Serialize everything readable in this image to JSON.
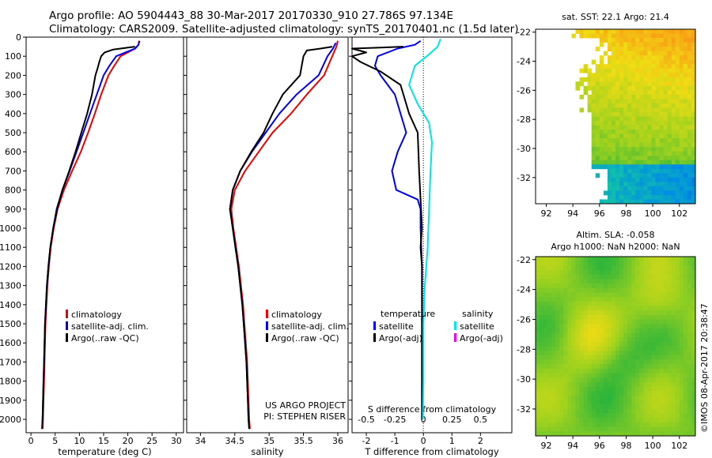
{
  "header": {
    "line1": "Argo profile: AO 5904443_88 30-Mar-2017 20170330_910 27.786S 97.134E",
    "line2": "Climatology: CARS2009. Satellite-adjusted climatology: synTS_20170401.nc (1.5d later)"
  },
  "credit": "©IMOS 08-Apr-2017 20:38:47",
  "colors": {
    "clim": "#ee0000",
    "sat": "#0000ee",
    "argo": "#000000",
    "sat_s": "#00e5e5",
    "argo_s": "#ee00ee",
    "zero": "#000000"
  },
  "chart_data": [
    {
      "id": "temperature",
      "type": "line",
      "xlabel": "temperature (deg C)",
      "xlim": [
        -1,
        31.5
      ],
      "xticks": [
        "0",
        "5",
        "10",
        "15",
        "20",
        "25",
        "30"
      ],
      "ylim": [
        2070,
        0
      ],
      "yticks": [
        "0",
        "100",
        "200",
        "300",
        "400",
        "500",
        "600",
        "700",
        "800",
        "900",
        "1000",
        "1100",
        "1200",
        "1300",
        "1400",
        "1500",
        "1600",
        "1700",
        "1800",
        "1900",
        "2000"
      ],
      "legend": {
        "position": "lower-middle",
        "items": [
          {
            "label": "climatology",
            "color": "#ee0000"
          },
          {
            "label": "satellite-adj. clim.",
            "color": "#0000ee"
          },
          {
            "label": "Argo(..raw -QC)",
            "color": "#000000"
          }
        ]
      },
      "series": [
        {
          "name": "climatology",
          "color": "#ee0000",
          "points": [
            [
              22.3,
              20
            ],
            [
              22.2,
              40
            ],
            [
              21.5,
              60
            ],
            [
              20,
              80
            ],
            [
              18.5,
              100
            ],
            [
              17.2,
              150
            ],
            [
              16,
              200
            ],
            [
              14.5,
              300
            ],
            [
              13.2,
              400
            ],
            [
              11.8,
              500
            ],
            [
              10.3,
              600
            ],
            [
              8.5,
              700
            ],
            [
              6.8,
              800
            ],
            [
              5.5,
              900
            ],
            [
              4.7,
              1000
            ],
            [
              4.1,
              1100
            ],
            [
              3.7,
              1200
            ],
            [
              3.4,
              1300
            ],
            [
              3.2,
              1400
            ],
            [
              3.0,
              1500
            ],
            [
              2.9,
              1600
            ],
            [
              2.8,
              1700
            ],
            [
              2.7,
              1800
            ],
            [
              2.6,
              1900
            ],
            [
              2.5,
              2000
            ],
            [
              2.4,
              2050
            ]
          ]
        },
        {
          "name": "satellite-adj. clim.",
          "color": "#0000ee",
          "points": [
            [
              22.4,
              20
            ],
            [
              22.2,
              40
            ],
            [
              21.5,
              60
            ],
            [
              19.5,
              80
            ],
            [
              17.6,
              100
            ],
            [
              16.2,
              150
            ],
            [
              15,
              200
            ],
            [
              13.6,
              300
            ],
            [
              12.2,
              400
            ],
            [
              10.8,
              500
            ],
            [
              9.4,
              600
            ],
            [
              8,
              700
            ],
            [
              6.5,
              800
            ],
            [
              5.3,
              900
            ],
            [
              4.6,
              1000
            ],
            [
              4.0,
              1100
            ],
            [
              3.6,
              1200
            ],
            [
              3.3,
              1300
            ],
            [
              3.1,
              1400
            ],
            [
              2.9,
              1500
            ],
            [
              2.8,
              1600
            ],
            [
              2.7,
              1700
            ],
            [
              2.6,
              1800
            ],
            [
              2.5,
              1900
            ],
            [
              2.4,
              2000
            ],
            [
              2.3,
              2050
            ]
          ]
        },
        {
          "name": "Argo(..raw -QC)",
          "color": "#000000",
          "points": [
            [
              21.5,
              50
            ],
            [
              20,
              55
            ],
            [
              17,
              65
            ],
            [
              15.2,
              80
            ],
            [
              14.5,
              100
            ],
            [
              14.1,
              130
            ],
            [
              13.8,
              160
            ],
            [
              13.3,
              200
            ],
            [
              12.6,
              300
            ],
            [
              11.6,
              400
            ],
            [
              10.4,
              500
            ],
            [
              9.2,
              600
            ],
            [
              7.9,
              700
            ],
            [
              6.5,
              800
            ],
            [
              5.4,
              900
            ],
            [
              4.6,
              1000
            ],
            [
              4.0,
              1100
            ],
            [
              3.6,
              1200
            ],
            [
              3.3,
              1300
            ],
            [
              3.1,
              1400
            ],
            [
              2.9,
              1500
            ],
            [
              2.8,
              1600
            ],
            [
              2.7,
              1700
            ],
            [
              2.6,
              1800
            ],
            [
              2.5,
              1900
            ],
            [
              2.4,
              2000
            ],
            [
              2.3,
              2050
            ]
          ]
        }
      ]
    },
    {
      "id": "salinity",
      "type": "line",
      "xlabel": "salinity",
      "xlim": [
        33.8,
        36.15
      ],
      "xticks": [
        "34",
        "34.5",
        "35",
        "35.5",
        "36"
      ],
      "ylim": [
        2070,
        0
      ],
      "legend": {
        "position": "lower-right",
        "items": [
          {
            "label": "climatology",
            "color": "#ee0000"
          },
          {
            "label": "satellite-adj. clim.",
            "color": "#0000ee"
          },
          {
            "label": "Argo(..raw -QC)",
            "color": "#000000"
          }
        ]
      },
      "annotation": [
        "US ARGO PROJECT",
        "PI: STEPHEN RISER"
      ],
      "series": [
        {
          "name": "climatology",
          "color": "#ee0000",
          "points": [
            [
              36.0,
              20
            ],
            [
              35.98,
              50
            ],
            [
              35.92,
              100
            ],
            [
              35.8,
              200
            ],
            [
              35.55,
              300
            ],
            [
              35.32,
              400
            ],
            [
              35.05,
              500
            ],
            [
              34.85,
              600
            ],
            [
              34.65,
              700
            ],
            [
              34.5,
              800
            ],
            [
              34.45,
              900
            ],
            [
              34.48,
              1000
            ],
            [
              34.52,
              1100
            ],
            [
              34.56,
              1200
            ],
            [
              34.59,
              1300
            ],
            [
              34.62,
              1400
            ],
            [
              34.64,
              1500
            ],
            [
              34.66,
              1600
            ],
            [
              34.68,
              1700
            ],
            [
              34.69,
              1800
            ],
            [
              34.7,
              1900
            ],
            [
              34.71,
              2000
            ],
            [
              34.72,
              2050
            ]
          ]
        },
        {
          "name": "satellite-adj. clim.",
          "color": "#0000ee",
          "points": [
            [
              35.97,
              30
            ],
            [
              35.93,
              60
            ],
            [
              35.85,
              100
            ],
            [
              35.72,
              200
            ],
            [
              35.4,
              300
            ],
            [
              35.15,
              400
            ],
            [
              34.95,
              500
            ],
            [
              34.75,
              600
            ],
            [
              34.58,
              700
            ],
            [
              34.47,
              800
            ],
            [
              34.43,
              900
            ],
            [
              34.47,
              1000
            ],
            [
              34.51,
              1100
            ],
            [
              34.55,
              1200
            ],
            [
              34.58,
              1300
            ],
            [
              34.61,
              1400
            ],
            [
              34.63,
              1500
            ],
            [
              34.65,
              1600
            ],
            [
              34.67,
              1700
            ],
            [
              34.68,
              1800
            ],
            [
              34.69,
              1900
            ],
            [
              34.7,
              2000
            ],
            [
              34.71,
              2050
            ]
          ]
        },
        {
          "name": "Argo(..raw -QC)",
          "color": "#000000",
          "points": [
            [
              35.92,
              50
            ],
            [
              35.75,
              60
            ],
            [
              35.55,
              70
            ],
            [
              35.5,
              100
            ],
            [
              35.45,
              200
            ],
            [
              35.2,
              300
            ],
            [
              35.05,
              400
            ],
            [
              34.92,
              500
            ],
            [
              34.74,
              600
            ],
            [
              34.58,
              700
            ],
            [
              34.47,
              800
            ],
            [
              34.43,
              900
            ],
            [
              34.47,
              1000
            ],
            [
              34.51,
              1100
            ],
            [
              34.55,
              1200
            ],
            [
              34.58,
              1300
            ],
            [
              34.61,
              1400
            ],
            [
              34.63,
              1500
            ],
            [
              34.65,
              1600
            ],
            [
              34.67,
              1700
            ],
            [
              34.68,
              1800
            ],
            [
              34.69,
              1900
            ],
            [
              34.7,
              2000
            ],
            [
              34.71,
              2050
            ]
          ]
        }
      ]
    },
    {
      "id": "difference",
      "type": "line",
      "xlabel": "T difference from climatology",
      "xlabel_top": "S difference from climatology",
      "xlim": [
        -2.5,
        3.1
      ],
      "xticks": [
        "-2",
        "-1",
        "0",
        "1",
        "2"
      ],
      "top_ticks": [
        "-0.5",
        "-0.25",
        "0",
        "0.25",
        "0.5"
      ],
      "ylim": [
        2070,
        0
      ],
      "legend": {
        "position": "lower",
        "headers": [
          "temperature",
          "salinity"
        ],
        "items": [
          {
            "label": "satellite",
            "color": "#0000ee"
          },
          {
            "label": "Argo(-adj)",
            "color": "#000000"
          },
          {
            "label": "satellite",
            "color": "#00e5e5"
          },
          {
            "label": "Argo(-adj)",
            "color": "#ee00ee"
          }
        ]
      },
      "series": [
        {
          "name": "temperature satellite",
          "color": "#0000ee",
          "points": [
            [
              -0.1,
              20
            ],
            [
              -0.3,
              40
            ],
            [
              -0.9,
              60
            ],
            [
              -1.6,
              100
            ],
            [
              -1.7,
              150
            ],
            [
              -1.5,
              200
            ],
            [
              -1.0,
              300
            ],
            [
              -0.8,
              400
            ],
            [
              -0.6,
              500
            ],
            [
              -0.9,
              600
            ],
            [
              -1.1,
              700
            ],
            [
              -0.95,
              800
            ],
            [
              -0.2,
              850
            ],
            [
              -0.1,
              900
            ],
            [
              -0.1,
              1000
            ],
            [
              -0.05,
              1200
            ],
            [
              -0.05,
              1400
            ],
            [
              -0.05,
              1600
            ],
            [
              -0.05,
              1800
            ],
            [
              -0.05,
              2000
            ]
          ]
        },
        {
          "name": "temperature Argo(-adj)",
          "color": "#000000",
          "points": [
            [
              -0.7,
              50
            ],
            [
              -1.5,
              55
            ],
            [
              -2.5,
              60
            ],
            [
              -2.0,
              80
            ],
            [
              -2.5,
              100
            ],
            [
              -2.2,
              130
            ],
            [
              -1.5,
              180
            ],
            [
              -0.8,
              250
            ],
            [
              -0.5,
              400
            ],
            [
              -0.2,
              500
            ],
            [
              -0.15,
              700
            ],
            [
              -0.05,
              1000
            ],
            [
              -0.1,
              1100
            ],
            [
              -0.05,
              1200
            ],
            [
              -0.05,
              1400
            ],
            [
              -0.05,
              1600
            ],
            [
              -0.05,
              1800
            ],
            [
              -0.05,
              2000
            ]
          ]
        },
        {
          "name": "salinity satellite",
          "color": "#00e5e5",
          "points": [
            [
              0.6,
              10
            ],
            [
              0.5,
              50
            ],
            [
              0.2,
              90
            ],
            [
              -0.3,
              150
            ],
            [
              -0.5,
              250
            ],
            [
              -0.2,
              350
            ],
            [
              0.2,
              450
            ],
            [
              0.3,
              550
            ],
            [
              0.25,
              700
            ],
            [
              0.2,
              900
            ],
            [
              0.15,
              1100
            ],
            [
              0.05,
              1300
            ],
            [
              0.0,
              1500
            ],
            [
              0.0,
              1800
            ],
            [
              -0.02,
              2000
            ]
          ]
        }
      ]
    },
    {
      "id": "sst-map",
      "type": "heatmap",
      "title": "sat. SST: 22.1  Argo: 21.4",
      "xticks": [
        "92",
        "94",
        "96",
        "98",
        "100",
        "102"
      ],
      "yticks": [
        "-22",
        "-24",
        "-26",
        "-28",
        "-30",
        "-32"
      ],
      "xlim": [
        91.2,
        103.2
      ],
      "ylim": [
        -33.8,
        -21.8
      ]
    },
    {
      "id": "sla-map",
      "type": "heatmap",
      "title": "Altim. SLA: -0.058",
      "subtitle": "Argo h1000: NaN  h2000: NaN",
      "xticks": [
        "92",
        "94",
        "96",
        "98",
        "100",
        "102"
      ],
      "yticks": [
        "-22",
        "-24",
        "-26",
        "-28",
        "-30",
        "-32"
      ],
      "xlim": [
        91.2,
        103.2
      ],
      "ylim": [
        -33.8,
        -21.8
      ]
    }
  ]
}
